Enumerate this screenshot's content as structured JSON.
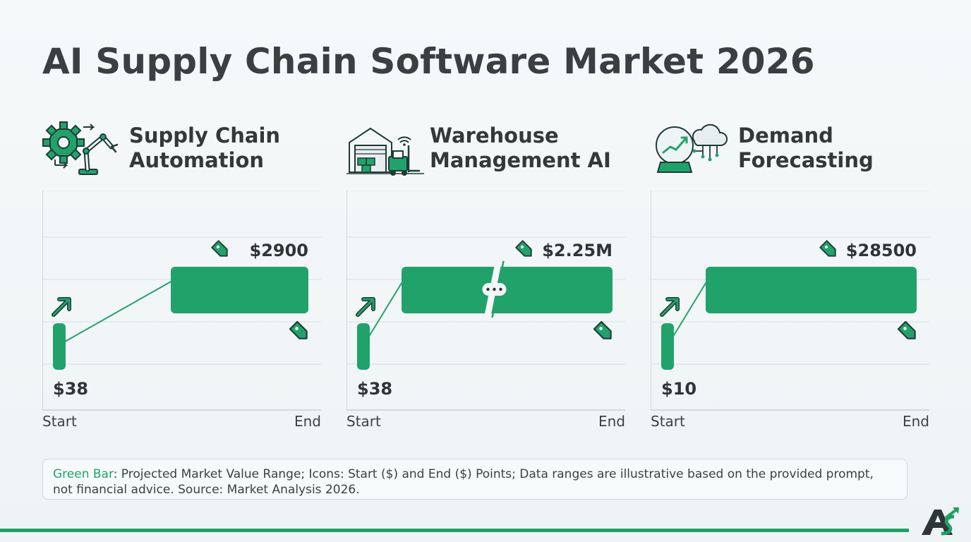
{
  "title": "AI Supply Chain Software Market 2026",
  "colors": {
    "accent": "#22a26b",
    "accent_dark": "#1b8a59",
    "grid": "#dde3e6",
    "text": "#2f3436"
  },
  "icons": {
    "start_marker": "arrow-up-right-icon",
    "end_marker": "price-tag-icon",
    "label_marker": "price-tag-icon",
    "axis_break": "axis-break-icon",
    "logo": "brand-logo-icon"
  },
  "chart_data": [
    {
      "type": "bar",
      "title_line1": "Supply Chain",
      "title_line2": "Automation",
      "icon": "gear-robot-arm-icon",
      "categories": [
        "Start",
        "End"
      ],
      "start_value": 38,
      "end_value": 2900,
      "start_label": "$38",
      "end_label": "$2900",
      "axis_break": false
    },
    {
      "type": "bar",
      "title_line1": "Warehouse",
      "title_line2": "Management AI",
      "icon": "warehouse-forklift-icon",
      "categories": [
        "Start",
        "End"
      ],
      "start_value": 38,
      "end_value": 2250000,
      "start_label": "$38",
      "end_label": "$2.25M",
      "axis_break": true
    },
    {
      "type": "bar",
      "title_line1": "Demand",
      "title_line2": "Forecasting",
      "icon": "crystal-ball-cloud-icon",
      "categories": [
        "Start",
        "End"
      ],
      "start_value": 10,
      "end_value": 28500,
      "start_label": "$10",
      "end_label": "$28500",
      "axis_break": false
    }
  ],
  "legend": {
    "key": "Green Bar",
    "text": ": Projected Market Value Range; Icons: Start ($) and End ($) Points; Data ranges are illustrative based on the provided prompt, not financial advice. Source: Market Analysis 2026."
  }
}
